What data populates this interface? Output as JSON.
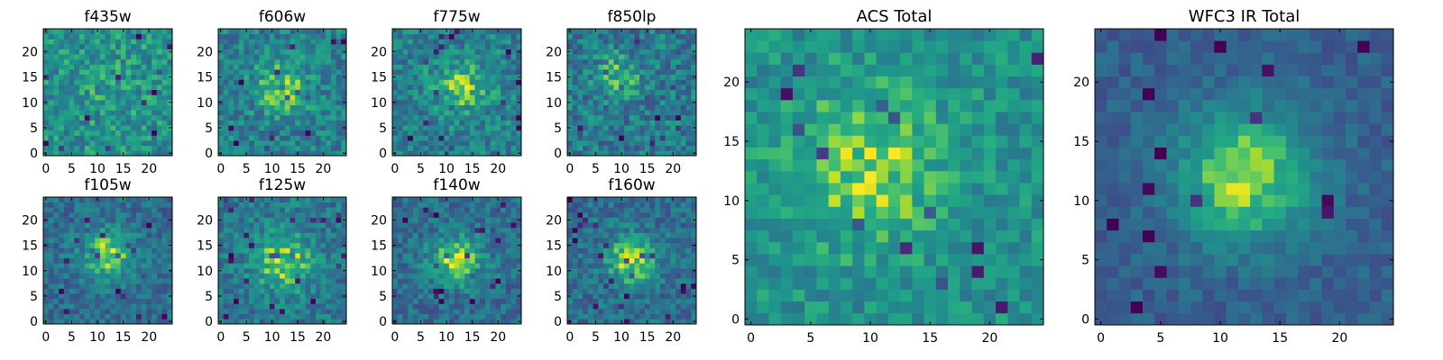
{
  "chart_data": [
    {
      "type": "heatmap",
      "title": "f435w",
      "grid_size": 25,
      "colormap": "viridis",
      "xticks": [
        0,
        5,
        10,
        15,
        20
      ],
      "yticks": [
        0,
        5,
        10,
        15,
        20
      ],
      "signal": {
        "center_x": 12,
        "center_y": 12,
        "amplitude": 0.05,
        "width": 4
      },
      "base_level": 0.62,
      "noise": 0.2
    },
    {
      "type": "heatmap",
      "title": "f606w",
      "grid_size": 25,
      "colormap": "viridis",
      "xticks": [
        0,
        5,
        10,
        15,
        20
      ],
      "yticks": [
        0,
        5,
        10,
        15,
        20
      ],
      "signal": {
        "center_x": 12,
        "center_y": 13,
        "amplitude": 0.28,
        "width": 3.5
      },
      "base_level": 0.55,
      "noise": 0.2
    },
    {
      "type": "heatmap",
      "title": "f775w",
      "grid_size": 25,
      "colormap": "viridis",
      "xticks": [
        0,
        5,
        10,
        15,
        20
      ],
      "yticks": [
        0,
        5,
        10,
        15,
        20
      ],
      "signal": {
        "center_x": 13,
        "center_y": 13,
        "amplitude": 0.28,
        "width": 3.5
      },
      "base_level": 0.55,
      "noise": 0.2
    },
    {
      "type": "heatmap",
      "title": "f850lp",
      "grid_size": 25,
      "colormap": "viridis",
      "xticks": [
        0,
        5,
        10,
        15,
        20
      ],
      "yticks": [
        0,
        5,
        10,
        15,
        20
      ],
      "signal": {
        "center_x": 9,
        "center_y": 15,
        "amplitude": 0.25,
        "width": 3
      },
      "base_level": 0.52,
      "noise": 0.22
    },
    {
      "type": "heatmap",
      "title": "f105w",
      "grid_size": 25,
      "colormap": "viridis",
      "xticks": [
        0,
        5,
        10,
        15,
        20
      ],
      "yticks": [
        0,
        5,
        10,
        15,
        20
      ],
      "signal": {
        "center_x": 12,
        "center_y": 13,
        "amplitude": 0.45,
        "width": 3.5
      },
      "base_level": 0.45,
      "noise": 0.17
    },
    {
      "type": "heatmap",
      "title": "f125w",
      "grid_size": 25,
      "colormap": "viridis",
      "xticks": [
        0,
        5,
        10,
        15,
        20
      ],
      "yticks": [
        0,
        5,
        10,
        15,
        20
      ],
      "signal": {
        "center_x": 12,
        "center_y": 12,
        "amplitude": 0.4,
        "width": 4
      },
      "base_level": 0.5,
      "noise": 0.18
    },
    {
      "type": "heatmap",
      "title": "f140w",
      "grid_size": 25,
      "colormap": "viridis",
      "xticks": [
        0,
        5,
        10,
        15,
        20
      ],
      "yticks": [
        0,
        5,
        10,
        15,
        20
      ],
      "signal": {
        "center_x": 12,
        "center_y": 12,
        "amplitude": 0.45,
        "width": 3.5
      },
      "base_level": 0.45,
      "noise": 0.17
    },
    {
      "type": "heatmap",
      "title": "f160w",
      "grid_size": 25,
      "colormap": "viridis",
      "xticks": [
        0,
        5,
        10,
        15,
        20
      ],
      "yticks": [
        0,
        5,
        10,
        15,
        20
      ],
      "signal": {
        "center_x": 12,
        "center_y": 12,
        "amplitude": 0.45,
        "width": 3.5
      },
      "base_level": 0.45,
      "noise": 0.17
    },
    {
      "type": "heatmap",
      "title": "ACS Total",
      "grid_size": 25,
      "colormap": "viridis",
      "xticks": [
        0,
        5,
        10,
        15,
        20
      ],
      "yticks": [
        0,
        5,
        10,
        15,
        20
      ],
      "signal": {
        "center_x": 10,
        "center_y": 13,
        "amplitude": 0.28,
        "width": 4.5
      },
      "base_level": 0.62,
      "noise": 0.15
    },
    {
      "type": "heatmap",
      "title": "WFC3 IR Total",
      "grid_size": 25,
      "colormap": "viridis",
      "xticks": [
        0,
        5,
        10,
        15,
        20
      ],
      "yticks": [
        0,
        5,
        10,
        15,
        20
      ],
      "signal": {
        "center_x": 12,
        "center_y": 12,
        "amplitude": 0.55,
        "width": 4
      },
      "base_level": 0.38,
      "noise": 0.1
    }
  ]
}
